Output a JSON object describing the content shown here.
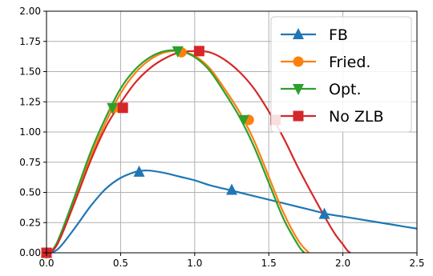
{
  "chart_data": {
    "type": "line",
    "xlim": [
      0,
      2.5
    ],
    "ylim": [
      0,
      2.0
    ],
    "xticks": [
      "0.0",
      "0.5",
      "1.0",
      "1.5",
      "2.0",
      "2.5"
    ],
    "yticks": [
      "0.00",
      "0.25",
      "0.50",
      "0.75",
      "1.00",
      "1.25",
      "1.50",
      "1.75",
      "2.00"
    ],
    "grid": true,
    "legend_position": "top-right",
    "series": [
      {
        "name": "FB",
        "color": "#1f77b4",
        "marker": "triangle-up",
        "line": [
          [
            0,
            0
          ],
          [
            0.05,
            0.01
          ],
          [
            0.1,
            0.06
          ],
          [
            0.2,
            0.22
          ],
          [
            0.3,
            0.39
          ],
          [
            0.4,
            0.53
          ],
          [
            0.5,
            0.62
          ],
          [
            0.6,
            0.67
          ],
          [
            0.65,
            0.68
          ],
          [
            0.7,
            0.68
          ],
          [
            0.8,
            0.66
          ],
          [
            0.9,
            0.63
          ],
          [
            1.0,
            0.6
          ],
          [
            1.1,
            0.56
          ],
          [
            1.2,
            0.53
          ],
          [
            1.3,
            0.5
          ],
          [
            1.4,
            0.47
          ],
          [
            1.5,
            0.44
          ],
          [
            1.6,
            0.41
          ],
          [
            1.7,
            0.38
          ],
          [
            1.8,
            0.35
          ],
          [
            1.9,
            0.32
          ],
          [
            2.0,
            0.3
          ],
          [
            2.1,
            0.28
          ],
          [
            2.2,
            0.26
          ],
          [
            2.3,
            0.24
          ],
          [
            2.4,
            0.22
          ],
          [
            2.5,
            0.2
          ]
        ],
        "markers": [
          [
            0,
            0
          ],
          [
            0.625,
            0.67
          ],
          [
            1.25,
            0.52
          ],
          [
            1.875,
            0.32
          ]
        ]
      },
      {
        "name": "Fried.",
        "color": "#ff7f0e",
        "marker": "circle",
        "line": [
          [
            0,
            0
          ],
          [
            0.05,
            0.03
          ],
          [
            0.1,
            0.15
          ],
          [
            0.2,
            0.47
          ],
          [
            0.3,
            0.8
          ],
          [
            0.4,
            1.08
          ],
          [
            0.5,
            1.32
          ],
          [
            0.6,
            1.49
          ],
          [
            0.7,
            1.6
          ],
          [
            0.8,
            1.66
          ],
          [
            0.9,
            1.67
          ],
          [
            1.0,
            1.63
          ],
          [
            1.1,
            1.53
          ],
          [
            1.2,
            1.36
          ],
          [
            1.3,
            1.17
          ],
          [
            1.4,
            0.93
          ],
          [
            1.5,
            0.63
          ],
          [
            1.6,
            0.33
          ],
          [
            1.7,
            0.1
          ],
          [
            1.77,
            0.0
          ]
        ],
        "markers": [
          [
            0,
            0
          ],
          [
            0.455,
            1.2
          ],
          [
            0.91,
            1.66
          ],
          [
            1.365,
            1.1
          ]
        ]
      },
      {
        "name": "Opt.",
        "color": "#2ca02c",
        "marker": "triangle-down",
        "line": [
          [
            0,
            0
          ],
          [
            0.05,
            0.04
          ],
          [
            0.1,
            0.17
          ],
          [
            0.2,
            0.5
          ],
          [
            0.3,
            0.84
          ],
          [
            0.4,
            1.12
          ],
          [
            0.5,
            1.36
          ],
          [
            0.6,
            1.52
          ],
          [
            0.7,
            1.62
          ],
          [
            0.8,
            1.67
          ],
          [
            0.9,
            1.67
          ],
          [
            1.0,
            1.62
          ],
          [
            1.1,
            1.51
          ],
          [
            1.2,
            1.33
          ],
          [
            1.3,
            1.13
          ],
          [
            1.4,
            0.88
          ],
          [
            1.5,
            0.58
          ],
          [
            1.6,
            0.28
          ],
          [
            1.7,
            0.06
          ],
          [
            1.74,
            0.0
          ]
        ],
        "markers": [
          [
            0,
            0
          ],
          [
            0.445,
            1.2
          ],
          [
            0.885,
            1.67
          ],
          [
            1.33,
            1.1
          ]
        ]
      },
      {
        "name": "No ZLB",
        "color": "#d62728",
        "marker": "square",
        "line": [
          [
            0,
            0
          ],
          [
            0.05,
            0.03
          ],
          [
            0.1,
            0.14
          ],
          [
            0.2,
            0.45
          ],
          [
            0.3,
            0.77
          ],
          [
            0.4,
            1.04
          ],
          [
            0.5,
            1.24
          ],
          [
            0.6,
            1.41
          ],
          [
            0.7,
            1.53
          ],
          [
            0.8,
            1.61
          ],
          [
            0.9,
            1.66
          ],
          [
            1.0,
            1.67
          ],
          [
            1.1,
            1.66
          ],
          [
            1.2,
            1.6
          ],
          [
            1.3,
            1.5
          ],
          [
            1.4,
            1.36
          ],
          [
            1.5,
            1.17
          ],
          [
            1.6,
            0.95
          ],
          [
            1.7,
            0.7
          ],
          [
            1.8,
            0.47
          ],
          [
            1.9,
            0.25
          ],
          [
            1.95,
            0.15
          ],
          [
            2.0,
            0.07
          ],
          [
            2.03,
            0.02
          ],
          [
            2.05,
            0.0
          ]
        ],
        "markers": [
          [
            0,
            0
          ],
          [
            0.515,
            1.2
          ],
          [
            1.03,
            1.67
          ],
          [
            1.545,
            1.1
          ]
        ]
      }
    ]
  }
}
